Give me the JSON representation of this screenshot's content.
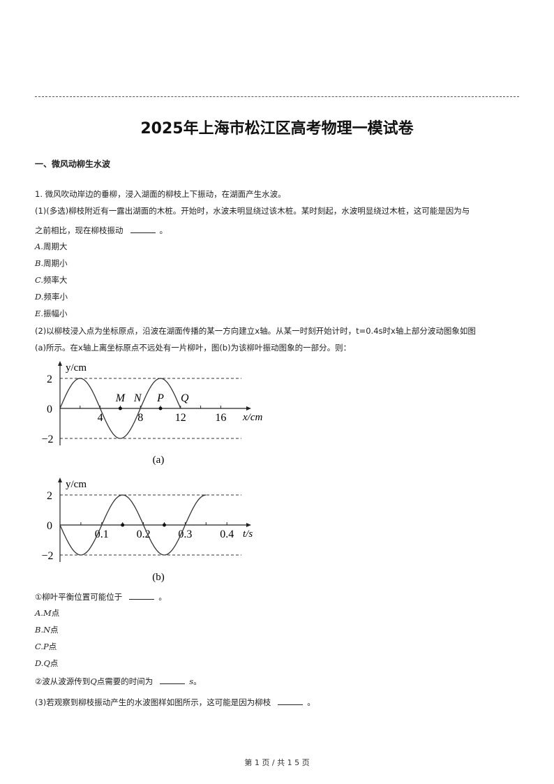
{
  "title": "2025年上海市松江区高考物理一模试卷",
  "section": "一、微风动柳生水波",
  "question": {
    "stem": "1. 微风吹动岸边的垂柳，浸入湖面的柳枝上下振动，在湖面产生水波。",
    "part1_line1": "(1)(多选)柳枝附近有一露出湖面的木桩。开始时，水波未明显绕过该木桩。某时刻起，水波明显绕过木桩，这可能是因为与",
    "part1_line2": "之前相比，现在柳枝振动",
    "part1_options": [
      {
        "letter": "A.",
        "text": "周期大"
      },
      {
        "letter": "B.",
        "text": "周期小"
      },
      {
        "letter": "C.",
        "text": "频率大"
      },
      {
        "letter": "D.",
        "text": "频率小"
      },
      {
        "letter": "E.",
        "text": "振幅小"
      }
    ],
    "part2_line1": "(2)以柳枝浸入点为坐标原点，沿波在湖面传播的某一方向建立x轴。从某一时刻开始计时，t=0.4s时x轴上部分波动图象如图",
    "part2_line2": "(a)所示。在x轴上离坐标原点不远处有一片柳叶，图(b)为该柳叶振动图象的一部分。则：",
    "sub1": "①柳叶平衡位置可能位于",
    "sub1_options": [
      {
        "letter": "A.",
        "pt": "M",
        "text": "点"
      },
      {
        "letter": "B.",
        "pt": "N",
        "text": "点"
      },
      {
        "letter": "C.",
        "pt": "P",
        "text": "点"
      },
      {
        "letter": "D.",
        "pt": "Q",
        "text": "点"
      }
    ],
    "sub2_pre": "②波从波源传到",
    "sub2_pt": "Q",
    "sub2_post": "点需要的时间为",
    "sub2_unit": "s",
    "part3": "(3)若观察到柳枝振动产生的水波图样如图所示，这可能是因为柳枝",
    "period": "。"
  },
  "figures": [
    {
      "caption": "(a)",
      "ylabel": "y/cm",
      "xlabel": "x/cm",
      "yticks": [
        "2",
        "0",
        "−2"
      ],
      "xticks": [
        "4",
        "8",
        "12",
        "16"
      ],
      "amplitude": 2,
      "wavelength": 8,
      "curve_range": [
        0,
        12
      ],
      "point_labels": [
        {
          "name": "M",
          "x": 6
        },
        {
          "name": "N",
          "x": 8
        },
        {
          "name": "P",
          "x": 10
        },
        {
          "name": "Q",
          "x": 12
        }
      ]
    },
    {
      "caption": "(b)",
      "ylabel": "y/cm",
      "xlabel": "t/s",
      "yticks": [
        "2",
        "0",
        "−2"
      ],
      "xticks": [
        "0.1",
        "0.2",
        "0.3",
        "0.4"
      ],
      "amplitude": 2,
      "period": 0.2,
      "curve_range": [
        0,
        0.35
      ],
      "dots": [
        0.15,
        0.25
      ]
    }
  ],
  "footer": "第 1 页   /   共 1 5 页"
}
